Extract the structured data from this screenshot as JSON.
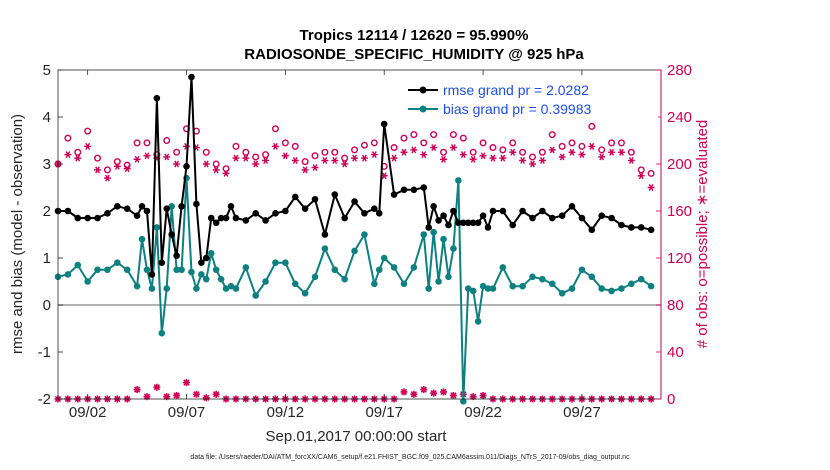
{
  "chart_data": {
    "type": "line",
    "title_line1": "Tropics 12114 / 12620 = 95.990%",
    "title_line2": "RADIOSONDE_SPECIFIC_HUMIDITY @ 925 hPa",
    "ylabel_left": "rmse and bias (model - observation)",
    "ylabel_right": "# of obs: o=possible; ∗=evaluated",
    "xlabel": "Sep.01,2017 00:00:00 start",
    "footnote": "data file: /Users/raeder/DAI/ATM_forcXX/CAM6_setup/f.e21.FHIST_BGC.f09_025.CAM6assim.011/Diags_NTrS_2017-09/obs_diag_output.nc",
    "xlim": [
      0.5,
      31.0
    ],
    "ylim_left": [
      -2,
      5
    ],
    "ylim_right": [
      0,
      280
    ],
    "xticks": [
      {
        "v": 2,
        "label": "09/02"
      },
      {
        "v": 7,
        "label": "09/07"
      },
      {
        "v": 12,
        "label": "09/12"
      },
      {
        "v": 17,
        "label": "09/17"
      },
      {
        "v": 22,
        "label": "09/22"
      },
      {
        "v": 27,
        "label": "09/27"
      }
    ],
    "yticks_left": [
      "-2",
      "-1",
      "0",
      "1",
      "2",
      "3",
      "4",
      "5"
    ],
    "yticks_right": [
      "0",
      "40",
      "80",
      "120",
      "160",
      "200",
      "240",
      "280"
    ],
    "colors": {
      "rmse": "#000000",
      "bias": "#0f8080",
      "obs": "#cc0055",
      "legend_text": "#1f4fe0",
      "zero_line": "#999999"
    },
    "series": [
      {
        "name": "rmse grand pr = 2.0282",
        "key": "rmse",
        "x": [
          0.5,
          1.0,
          1.5,
          2.0,
          2.5,
          3.0,
          3.5,
          4.0,
          4.5,
          4.75,
          5.0,
          5.25,
          5.5,
          5.75,
          6.0,
          6.25,
          6.5,
          6.75,
          7.0,
          7.25,
          7.5,
          7.75,
          8.0,
          8.25,
          8.5,
          8.75,
          9.0,
          9.25,
          9.5,
          10.0,
          10.5,
          11.0,
          11.5,
          12.0,
          12.5,
          13.0,
          13.5,
          14.0,
          14.5,
          15.0,
          15.5,
          16.0,
          16.5,
          16.75,
          17.0,
          17.5,
          18.0,
          18.5,
          19.0,
          19.25,
          19.5,
          19.75,
          20.0,
          20.25,
          20.5,
          20.75,
          21.0,
          21.25,
          21.5,
          21.75,
          22.0,
          22.25,
          22.5,
          23.0,
          23.5,
          24.0,
          24.5,
          25.0,
          25.5,
          26.0,
          26.5,
          27.0,
          27.5,
          28.0,
          28.5,
          29.0,
          29.5,
          30.0,
          30.5
        ],
        "y": [
          2.0,
          2.0,
          1.85,
          1.85,
          1.85,
          1.95,
          2.1,
          2.05,
          1.9,
          2.1,
          2.0,
          0.65,
          4.4,
          0.9,
          2.05,
          1.5,
          1.05,
          2.1,
          2.95,
          4.85,
          2.15,
          0.9,
          1.0,
          1.85,
          1.75,
          1.85,
          1.85,
          2.1,
          1.85,
          1.8,
          1.95,
          1.8,
          1.95,
          2.0,
          2.3,
          2.05,
          2.25,
          1.5,
          2.35,
          1.85,
          2.2,
          1.95,
          2.05,
          1.95,
          3.85,
          2.35,
          2.45,
          2.45,
          2.5,
          1.65,
          2.1,
          1.8,
          1.9,
          1.7,
          2.0,
          1.75,
          1.75,
          1.75,
          1.75,
          1.75,
          1.9,
          1.65,
          2.0,
          2.0,
          1.7,
          2.0,
          1.85,
          2.0,
          1.85,
          1.9,
          2.1,
          1.85,
          1.6,
          1.9,
          1.85,
          1.7,
          1.65,
          1.65,
          1.6
        ]
      },
      {
        "name": "bias grand pr = 0.39983",
        "key": "bias",
        "x": [
          0.5,
          1.0,
          1.5,
          2.0,
          2.5,
          3.0,
          3.5,
          4.0,
          4.5,
          4.75,
          5.0,
          5.25,
          5.5,
          5.75,
          6.0,
          6.25,
          6.5,
          6.75,
          7.0,
          7.25,
          7.5,
          7.75,
          8.0,
          8.25,
          8.5,
          8.75,
          9.0,
          9.25,
          9.5,
          10.0,
          10.5,
          11.0,
          11.5,
          12.0,
          12.5,
          13.0,
          13.5,
          14.0,
          14.5,
          15.0,
          15.5,
          16.0,
          16.5,
          16.75,
          17.0,
          17.5,
          18.0,
          18.5,
          19.0,
          19.25,
          19.5,
          19.75,
          20.0,
          20.25,
          20.5,
          20.75,
          21.0,
          21.25,
          21.5,
          21.75,
          22.0,
          22.25,
          22.5,
          23.0,
          23.5,
          24.0,
          24.5,
          25.0,
          25.5,
          26.0,
          26.5,
          27.0,
          27.5,
          28.0,
          28.5,
          29.0,
          29.5,
          30.0,
          30.5
        ],
        "y": [
          0.6,
          0.65,
          0.85,
          0.5,
          0.75,
          0.75,
          0.9,
          0.75,
          0.4,
          1.4,
          0.75,
          0.35,
          1.65,
          -0.6,
          0.35,
          2.1,
          0.75,
          0.75,
          2.7,
          0.7,
          0.35,
          0.65,
          0.55,
          1.1,
          0.75,
          0.55,
          0.35,
          0.4,
          0.35,
          0.8,
          0.2,
          0.5,
          0.9,
          0.9,
          0.45,
          0.25,
          0.6,
          1.2,
          0.75,
          0.55,
          1.15,
          1.5,
          0.45,
          0.75,
          1.0,
          0.8,
          0.45,
          0.8,
          1.5,
          0.35,
          1.55,
          0.5,
          1.4,
          0.6,
          1.2,
          2.65,
          -2.05,
          0.35,
          0.3,
          -0.35,
          0.4,
          0.35,
          0.35,
          0.8,
          0.4,
          0.4,
          0.6,
          0.55,
          0.45,
          0.25,
          0.35,
          0.75,
          0.6,
          0.35,
          0.3,
          0.35,
          0.45,
          0.55,
          0.4
        ]
      },
      {
        "name": "obs possible",
        "key": "obs_possible",
        "x": [
          0.5,
          1.0,
          1.5,
          2.0,
          2.5,
          3.0,
          3.5,
          4.0,
          4.5,
          5.0,
          5.5,
          6.0,
          6.5,
          7.0,
          7.5,
          8.0,
          8.5,
          9.0,
          9.5,
          10.0,
          10.5,
          11.0,
          11.5,
          12.0,
          12.5,
          13.0,
          13.5,
          14.0,
          14.5,
          15.0,
          15.5,
          16.0,
          16.5,
          17.0,
          17.5,
          18.0,
          18.5,
          19.0,
          19.5,
          20.0,
          20.5,
          21.0,
          21.5,
          22.0,
          22.5,
          23.0,
          23.5,
          24.0,
          24.5,
          25.0,
          25.5,
          26.0,
          26.5,
          27.0,
          27.5,
          28.0,
          28.5,
          29.0,
          29.5,
          30.0,
          30.5
        ],
        "y": [
          200,
          222,
          210,
          228,
          205,
          195,
          202,
          199,
          218,
          218,
          208,
          220,
          210,
          230,
          228,
          210,
          200,
          196,
          215,
          210,
          206,
          208,
          230,
          218,
          215,
          202,
          207,
          210,
          210,
          205,
          212,
          216,
          218,
          198,
          214,
          222,
          225,
          218,
          225,
          210,
          225,
          222,
          210,
          218,
          214,
          212,
          218,
          210,
          206,
          210,
          225,
          215,
          218,
          215,
          232,
          212,
          218,
          218,
          210,
          195,
          192
        ]
      },
      {
        "name": "obs evaluated",
        "key": "obs_evaluated",
        "x": [
          0.5,
          1.0,
          1.5,
          2.0,
          2.5,
          3.0,
          3.5,
          4.0,
          4.5,
          5.0,
          5.5,
          6.0,
          6.5,
          7.0,
          7.5,
          8.0,
          8.5,
          9.0,
          9.5,
          10.0,
          10.5,
          11.0,
          11.5,
          12.0,
          12.5,
          13.0,
          13.5,
          14.0,
          14.5,
          15.0,
          15.5,
          16.0,
          16.5,
          17.0,
          17.5,
          18.0,
          18.5,
          19.0,
          19.5,
          20.0,
          20.5,
          21.0,
          21.5,
          22.0,
          22.5,
          23.0,
          23.5,
          24.0,
          24.5,
          25.0,
          25.5,
          26.0,
          26.5,
          27.0,
          27.5,
          28.0,
          28.5,
          29.0,
          29.5,
          30.0,
          30.5
        ],
        "y": [
          200,
          208,
          205,
          215,
          195,
          188,
          198,
          196,
          204,
          207,
          205,
          206,
          200,
          215,
          214,
          200,
          195,
          192,
          205,
          205,
          200,
          203,
          215,
          207,
          203,
          195,
          197,
          203,
          203,
          200,
          205,
          205,
          208,
          190,
          205,
          210,
          212,
          208,
          214,
          204,
          214,
          208,
          204,
          207,
          205,
          205,
          210,
          203,
          200,
          203,
          212,
          206,
          210,
          208,
          215,
          206,
          210,
          210,
          203,
          190,
          180
        ]
      },
      {
        "name": "obs near zero",
        "key": "obs_zero",
        "x": [
          0.5,
          1.0,
          1.5,
          2.0,
          2.5,
          3.0,
          3.5,
          4.0,
          4.5,
          5.0,
          5.5,
          6.0,
          6.5,
          7.0,
          7.5,
          8.0,
          8.5,
          9.0,
          9.5,
          10.0,
          10.5,
          11.0,
          11.5,
          12.0,
          12.5,
          13.0,
          13.5,
          14.0,
          14.5,
          15.0,
          15.5,
          16.0,
          16.5,
          17.0,
          17.5,
          18.0,
          18.5,
          19.0,
          19.5,
          20.0,
          20.5,
          21.0,
          21.5,
          22.0,
          22.5,
          23.0,
          23.5,
          24.0,
          24.5,
          25.0,
          25.5,
          26.0,
          26.5,
          27.0,
          27.5,
          28.0,
          28.5,
          29.0,
          29.5,
          30.0,
          30.5
        ],
        "y": [
          0,
          0,
          0,
          0,
          0,
          0,
          0,
          0,
          8,
          2,
          10,
          2,
          3,
          14,
          4,
          1,
          4,
          0,
          0,
          0,
          0,
          0,
          0,
          0,
          0,
          0,
          0,
          0,
          0,
          0,
          0,
          0,
          0,
          0,
          0,
          6,
          4,
          8,
          5,
          6,
          3,
          4,
          2,
          3,
          0,
          0,
          0,
          0,
          0,
          0,
          0,
          0,
          0,
          0,
          0,
          0,
          0,
          0,
          0,
          0,
          0
        ]
      }
    ]
  }
}
